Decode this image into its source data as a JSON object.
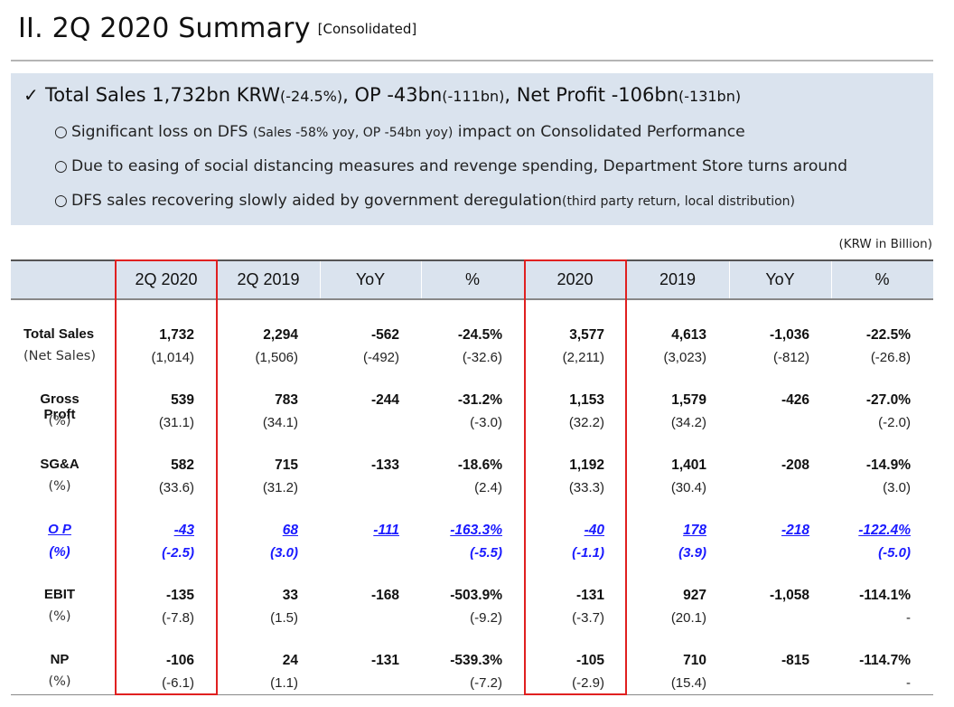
{
  "title": "II. 2Q 2020 Summary",
  "title_note": "[Consolidated]",
  "summary": {
    "check_icon": "check-icon",
    "headline": {
      "p1": "Total Sales 1,732bn KRW",
      "p1s": "(-24.5%)",
      "p2": ", OP -43bn",
      "p2s": "(-111bn)",
      "p3": ", Net Profit -106bn",
      "p3s": "(-131bn)"
    },
    "bullet_icon": "circle-bullet-icon",
    "bullets": [
      {
        "a": "Significant loss on DFS ",
        "b": "(Sales -58% yoy, OP -54bn yoy)",
        "c": " impact on Consolidated Performance"
      },
      {
        "a": "Due to easing of social distancing measures and revenge spending, Department Store turns around",
        "b": "",
        "c": ""
      },
      {
        "a": "DFS sales recovering slowly aided by government deregulation",
        "b": "(third party return, local distribution)",
        "c": ""
      }
    ]
  },
  "unit_note": "(KRW in Billion)",
  "table": {
    "headers": [
      "2Q 2020",
      "2Q 2019",
      "YoY",
      "%",
      "2020",
      "2019",
      "YoY",
      "%"
    ],
    "rows": [
      {
        "label": "Total Sales",
        "sublabel": "(Net Sales)",
        "values": [
          "1,732",
          "2,294",
          "-562",
          "-24.5%",
          "3,577",
          "4,613",
          "-1,036",
          "-22.5%"
        ],
        "subvalues": [
          "(1,014)",
          "(1,506)",
          "(-492)",
          "(-32.6)",
          "(2,211)",
          "(3,023)",
          "(-812)",
          "(-26.8)"
        ]
      },
      {
        "label": "Gross Proft",
        "sublabel": "(%)",
        "values": [
          "539",
          "783",
          "-244",
          "-31.2%",
          "1,153",
          "1,579",
          "-426",
          "-27.0%"
        ],
        "subvalues": [
          "(31.1)",
          "(34.1)",
          "",
          "(-3.0)",
          "(32.2)",
          "(34.2)",
          "",
          "(-2.0)"
        ]
      },
      {
        "label": "SG&A",
        "sublabel": "(%)",
        "values": [
          "582",
          "715",
          "-133",
          "-18.6%",
          "1,192",
          "1,401",
          "-208",
          "-14.9%"
        ],
        "subvalues": [
          "(33.6)",
          "(31.2)",
          "",
          "(2.4)",
          "(33.3)",
          "(30.4)",
          "",
          "(3.0)"
        ]
      },
      {
        "label": "O P",
        "sublabel": "(%)",
        "values": [
          "-43",
          "68",
          "-111",
          "-163.3%",
          "-40",
          "178",
          "-218",
          "-122.4%"
        ],
        "subvalues": [
          "(-2.5)",
          "(3.0)",
          "",
          "(-5.5)",
          "(-1.1)",
          "(3.9)",
          "",
          "(-5.0)"
        ]
      },
      {
        "label": "EBIT",
        "sublabel": "(%)",
        "values": [
          "-135",
          "33",
          "-168",
          "-503.9%",
          "-131",
          "927",
          "-1,058",
          "-114.1%"
        ],
        "subvalues": [
          "(-7.8)",
          "(1.5)",
          "",
          "(-9.2)",
          "(-3.7)",
          "(20.1)",
          "",
          "-"
        ]
      },
      {
        "label": "NP",
        "sublabel": "(%)",
        "values": [
          "-106",
          "24",
          "-131",
          "-539.3%",
          "-105",
          "710",
          "-815",
          "-114.7%"
        ],
        "subvalues": [
          "(-6.1)",
          "(1.1)",
          "",
          "(-7.2)",
          "(-2.9)",
          "(15.4)",
          "",
          "-"
        ]
      }
    ]
  },
  "colors": {
    "accent_box": "#e02020",
    "header_bg": "#dae3ee",
    "op_blue": "#1a1aff"
  }
}
